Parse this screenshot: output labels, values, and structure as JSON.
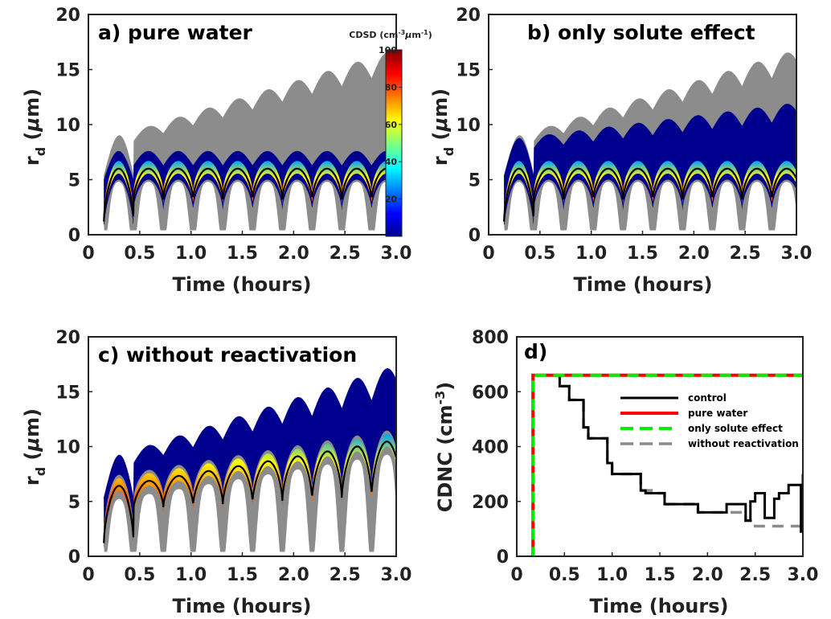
{
  "colors": {
    "cloud_gray": "#8c8c8c",
    "cloud_blue": "#00008f",
    "control": "#000000",
    "pure_water": "#ff0000",
    "only_solute_effect": "#00ee00",
    "without_reactivation": "#8c8c8c"
  },
  "chart_data": [
    {
      "panel": "a",
      "type": "area",
      "title": "a) pure water",
      "xlabel": "Time (hours)",
      "ylabel": "r_d (μm)",
      "xlim": [
        0,
        3.0
      ],
      "ylim": [
        0,
        20
      ],
      "xticks": [
        "0",
        "0.5",
        "1.0",
        "1.5",
        "2.0",
        "2.5",
        "3.0"
      ],
      "yticks": [
        "0",
        "5",
        "10",
        "15",
        "20"
      ],
      "start": 0.15,
      "period": 0.29,
      "gray_upper": {
        "start": 5.4,
        "peak_first": 8.6,
        "peak_last": 16.8,
        "trough_first": 7.8,
        "trough_last": 14.8
      },
      "blue_upper": {
        "start": 5.0,
        "peak_first": 7.6,
        "peak_last": 7.6,
        "trough_first": 6.3,
        "trough_last": 6.3
      },
      "mode": {
        "start": 1.2,
        "peak_first": 6.0,
        "peak_last": 6.0,
        "trough_first": 3.2,
        "trough_last": 3.2
      },
      "gray_lower_min": 0.4,
      "colorbar": {
        "label": "CDSD (cm⁻³ μm⁻¹)",
        "range": [
          0,
          100
        ],
        "ticks": [
          "20",
          "40",
          "60",
          "80",
          "100"
        ],
        "tick_values": [
          20,
          40,
          60,
          80,
          100
        ]
      }
    },
    {
      "panel": "b",
      "type": "area",
      "title": "b) only solute effect",
      "xlabel": "Time (hours)",
      "ylabel": "r_d (μm)",
      "xlim": [
        0,
        3.0
      ],
      "ylim": [
        0,
        20
      ],
      "xticks": [
        "0",
        "0.5",
        "1.0",
        "1.5",
        "2.0",
        "2.5",
        "3.0"
      ],
      "yticks": [
        "0",
        "5",
        "10",
        "15",
        "20"
      ],
      "start": 0.15,
      "period": 0.29,
      "gray_upper": {
        "start": 5.4,
        "peak_first": 8.6,
        "peak_last": 16.8,
        "trough_first": 7.8,
        "trough_last": 14.8
      },
      "blue_upper": {
        "start": 5.4,
        "peak_first": 8.6,
        "peak_last": 12.0,
        "trough_first": 7.6,
        "trough_last": 10.4
      },
      "mode": {
        "start": 1.2,
        "peak_first": 6.0,
        "peak_last": 6.0,
        "trough_first": 3.2,
        "trough_last": 3.2
      },
      "gray_lower_min": 0.4
    },
    {
      "panel": "c",
      "type": "area",
      "title": "c) without reactivation",
      "xlabel": "Time (hours)",
      "ylabel": "r_d (μm)",
      "xlim": [
        0,
        3.0
      ],
      "ylim": [
        0,
        20
      ],
      "xticks": [
        "0",
        "0.5",
        "1.0",
        "1.5",
        "2.0",
        "2.5",
        "3.0"
      ],
      "yticks": [
        "0",
        "5",
        "10",
        "15",
        "20"
      ],
      "start": 0.15,
      "period": 0.29,
      "blue_upper": {
        "start": 5.4,
        "peak_first": 8.8,
        "peak_last": 17.4,
        "trough_first": 7.8,
        "trough_last": 14.8
      },
      "mode": {
        "start": 1.2,
        "peak_first": 6.2,
        "peak_last": 10.6,
        "trough_first": 4.2,
        "trough_last": 5.6
      },
      "gray_lower_min": 0.4
    },
    {
      "panel": "d",
      "type": "line",
      "title": "d)",
      "xlabel": "Time (hours)",
      "ylabel": "CDNC (cm⁻³)",
      "xlim": [
        0,
        3.0
      ],
      "ylim": [
        0,
        800
      ],
      "xticks": [
        "0",
        "0.5",
        "1.0",
        "1.5",
        "2.0",
        "2.5",
        "3.0"
      ],
      "yticks": [
        "0",
        "200",
        "400",
        "600",
        "800"
      ],
      "legend_position": "center-right",
      "series": [
        {
          "name": "control",
          "style": "solid",
          "x": [
            0.15,
            0.17,
            0.4,
            0.45,
            0.55,
            0.65,
            0.7,
            0.75,
            0.9,
            0.95,
            1.0,
            1.05,
            1.25,
            1.3,
            1.35,
            1.45,
            1.5,
            1.55,
            1.85,
            1.9,
            2.15,
            2.2,
            2.35,
            2.4,
            2.45,
            2.5,
            2.55,
            2.6,
            2.65,
            2.7,
            2.75,
            2.8,
            2.85,
            2.95,
            2.98,
            3.0
          ],
          "y": [
            0,
            660,
            660,
            620,
            570,
            570,
            470,
            430,
            430,
            340,
            300,
            300,
            300,
            240,
            230,
            230,
            230,
            190,
            190,
            160,
            160,
            190,
            190,
            130,
            200,
            230,
            230,
            140,
            140,
            210,
            230,
            230,
            260,
            260,
            90,
            300
          ]
        },
        {
          "name": "pure water",
          "style": "solid",
          "x": [
            0.15,
            0.17,
            3.0
          ],
          "y": [
            0,
            660,
            660
          ]
        },
        {
          "name": "only solute effect",
          "style": "dashed",
          "x": [
            0.15,
            0.17,
            3.0
          ],
          "y": [
            0,
            660,
            660
          ]
        },
        {
          "name": "without reactivation",
          "style": "dashed",
          "x": [
            0.15,
            0.17,
            0.4,
            0.45,
            0.55,
            0.65,
            0.7,
            0.75,
            0.9,
            0.95,
            1.0,
            1.05,
            1.25,
            1.3,
            1.45,
            1.5,
            1.55,
            1.85,
            1.9,
            2.2,
            2.4,
            2.5,
            2.8,
            2.9,
            3.0
          ],
          "y": [
            0,
            660,
            660,
            620,
            570,
            570,
            470,
            430,
            430,
            340,
            300,
            300,
            300,
            240,
            230,
            230,
            190,
            190,
            160,
            160,
            130,
            110,
            110,
            110,
            110
          ]
        }
      ]
    }
  ]
}
